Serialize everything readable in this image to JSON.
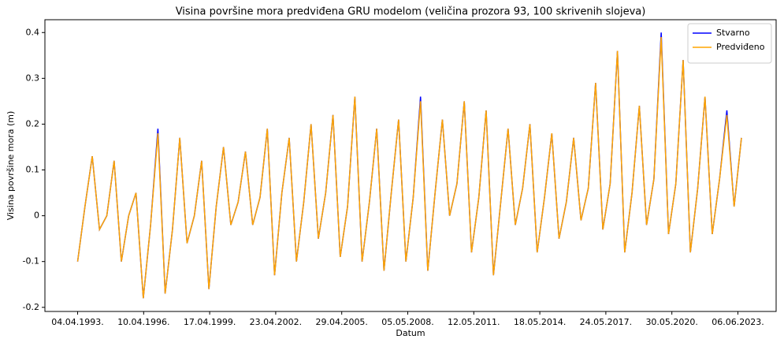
{
  "chart_data": {
    "type": "line",
    "title": "Visina površine mora predviđena GRU modelom (veličina prozora 93, 100 skrivenih slojeva)",
    "x_label": "Datum",
    "y_label": "Visina površine mora (m)",
    "x": [
      "1993-04-04",
      "1993-08-04",
      "1993-12-04",
      "1994-04-04",
      "1994-08-04",
      "1994-12-04",
      "1995-04-04",
      "1995-08-04",
      "1995-12-04",
      "1996-04-04",
      "1996-08-04",
      "1996-12-04",
      "1997-04-04",
      "1997-08-04",
      "1997-12-04",
      "1998-04-04",
      "1998-08-04",
      "1998-12-04",
      "1999-04-04",
      "1999-08-04",
      "1999-12-04",
      "2000-04-04",
      "2000-08-04",
      "2000-12-04",
      "2001-04-04",
      "2001-08-04",
      "2001-12-04",
      "2002-04-04",
      "2002-08-04",
      "2002-12-04",
      "2003-04-04",
      "2003-08-04",
      "2003-12-04",
      "2004-04-04",
      "2004-08-04",
      "2004-12-04",
      "2005-04-04",
      "2005-08-04",
      "2005-12-04",
      "2006-04-04",
      "2006-08-04",
      "2006-12-04",
      "2007-04-04",
      "2007-08-04",
      "2007-12-04",
      "2008-04-04",
      "2008-08-04",
      "2008-12-04",
      "2009-04-04",
      "2009-08-04",
      "2009-12-04",
      "2010-04-04",
      "2010-08-04",
      "2010-12-04",
      "2011-04-04",
      "2011-08-04",
      "2011-12-04",
      "2012-04-04",
      "2012-08-04",
      "2012-12-04",
      "2013-04-04",
      "2013-08-04",
      "2013-12-04",
      "2014-04-04",
      "2014-08-04",
      "2014-12-04",
      "2015-04-04",
      "2015-08-04",
      "2015-12-04",
      "2016-04-04",
      "2016-08-04",
      "2016-12-04",
      "2017-04-04",
      "2017-08-04",
      "2017-12-04",
      "2018-04-04",
      "2018-08-04",
      "2018-12-04",
      "2019-04-04",
      "2019-08-04",
      "2019-12-04",
      "2020-04-04",
      "2020-08-04",
      "2020-12-04",
      "2021-04-04",
      "2021-08-04",
      "2021-12-04",
      "2022-04-04",
      "2022-08-04",
      "2022-12-04",
      "2023-04-04",
      "2023-08-04"
    ],
    "series": [
      {
        "name": "Stvarno",
        "color": "#0000ff",
        "values": [
          -0.1,
          0.02,
          0.13,
          -0.03,
          0.0,
          0.12,
          -0.1,
          0.0,
          0.05,
          -0.18,
          -0.02,
          0.19,
          -0.17,
          -0.03,
          0.17,
          -0.06,
          0.0,
          0.12,
          -0.16,
          0.02,
          0.15,
          -0.02,
          0.03,
          0.14,
          -0.02,
          0.04,
          0.19,
          -0.13,
          0.05,
          0.17,
          -0.1,
          0.03,
          0.2,
          -0.05,
          0.05,
          0.22,
          -0.09,
          0.02,
          0.26,
          -0.1,
          0.03,
          0.19,
          -0.12,
          0.05,
          0.21,
          -0.1,
          0.04,
          0.26,
          -0.12,
          0.05,
          0.21,
          0.0,
          0.07,
          0.25,
          -0.08,
          0.04,
          0.23,
          -0.13,
          0.03,
          0.19,
          -0.02,
          0.06,
          0.2,
          -0.08,
          0.04,
          0.18,
          -0.05,
          0.03,
          0.17,
          -0.01,
          0.06,
          0.29,
          -0.03,
          0.07,
          0.36,
          -0.08,
          0.05,
          0.24,
          -0.02,
          0.08,
          0.4,
          -0.04,
          0.07,
          0.34,
          -0.08,
          0.06,
          0.26,
          -0.04,
          0.08,
          0.23,
          0.02,
          0.17
        ]
      },
      {
        "name": "Predviđeno",
        "color": "#ffa500",
        "values": [
          -0.1,
          0.02,
          0.13,
          -0.03,
          0.0,
          0.12,
          -0.1,
          0.0,
          0.05,
          -0.18,
          -0.02,
          0.18,
          -0.17,
          -0.03,
          0.17,
          -0.06,
          0.0,
          0.12,
          -0.16,
          0.02,
          0.15,
          -0.02,
          0.03,
          0.14,
          -0.02,
          0.04,
          0.19,
          -0.13,
          0.05,
          0.17,
          -0.1,
          0.03,
          0.2,
          -0.05,
          0.05,
          0.22,
          -0.09,
          0.02,
          0.26,
          -0.1,
          0.03,
          0.19,
          -0.12,
          0.05,
          0.21,
          -0.1,
          0.04,
          0.25,
          -0.12,
          0.05,
          0.21,
          0.0,
          0.07,
          0.25,
          -0.08,
          0.04,
          0.23,
          -0.13,
          0.03,
          0.19,
          -0.02,
          0.06,
          0.2,
          -0.08,
          0.04,
          0.18,
          -0.05,
          0.03,
          0.17,
          -0.01,
          0.06,
          0.29,
          -0.03,
          0.07,
          0.36,
          -0.08,
          0.05,
          0.24,
          -0.02,
          0.08,
          0.39,
          -0.04,
          0.07,
          0.34,
          -0.08,
          0.06,
          0.26,
          -0.04,
          0.08,
          0.22,
          0.02,
          0.17
        ]
      }
    ],
    "xlim": [
      "1991-10-06",
      "2025-03-05"
    ],
    "xticks": [
      {
        "value": "1993-04-04",
        "label": "04.04.1993."
      },
      {
        "value": "1996-04-10",
        "label": "10.04.1996."
      },
      {
        "value": "1999-04-17",
        "label": "17.04.1999."
      },
      {
        "value": "2002-04-23",
        "label": "23.04.2002."
      },
      {
        "value": "2005-04-29",
        "label": "29.04.2005."
      },
      {
        "value": "2008-05-05",
        "label": "05.05.2008."
      },
      {
        "value": "2011-05-12",
        "label": "12.05.2011."
      },
      {
        "value": "2014-05-18",
        "label": "18.05.2014."
      },
      {
        "value": "2017-05-24",
        "label": "24.05.2017."
      },
      {
        "value": "2020-05-30",
        "label": "30.05.2020."
      },
      {
        "value": "2023-06-06",
        "label": "06.06.2023."
      }
    ],
    "ylim": [
      -0.209,
      0.428
    ],
    "yticks": [
      -0.2,
      -0.1,
      0.0,
      0.1,
      0.2,
      0.3,
      0.4
    ],
    "legend": "upper right",
    "grid": false
  }
}
